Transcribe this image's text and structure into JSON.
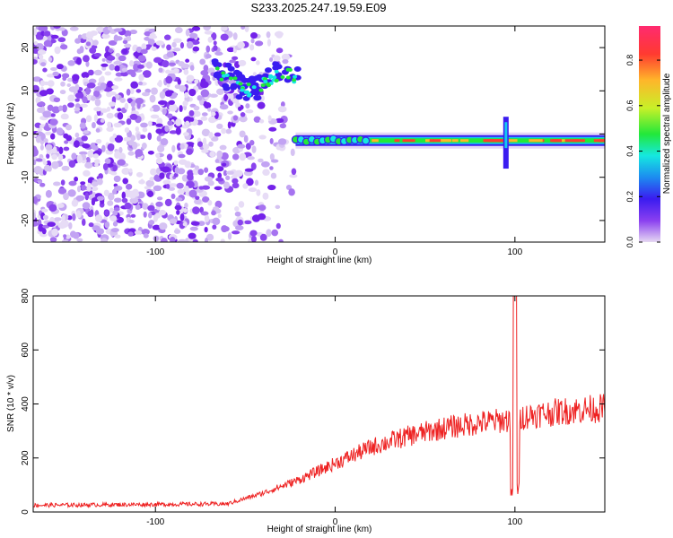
{
  "title": "S233.2025.247.19.59.E09",
  "colors": {
    "trace": "#ee2222",
    "frame": "#000000"
  },
  "chart_data": [
    {
      "type": "heatmap",
      "xlabel": "Height of straight line (km)",
      "ylabel": "Frequency (Hz)",
      "xlim": [
        -168,
        150
      ],
      "ylim": [
        -25,
        25
      ],
      "xticks": [
        -100,
        0,
        100
      ],
      "yticks": [
        -20,
        -10,
        0,
        10,
        20
      ],
      "colorbar": {
        "label": "Normalized spectral amplitude",
        "range": [
          0,
          0.95
        ],
        "ticks": [
          0.0,
          0.2,
          0.4,
          0.6,
          0.8
        ],
        "colormap": "rainbow (violet low to red/magenta high)"
      },
      "features": [
        {
          "name": "background noise",
          "x_range": [
            -168,
            -20
          ],
          "freq_range": [
            -25,
            25
          ]
        },
        {
          "name": "signal segment",
          "x_range": [
            -68,
            -20
          ],
          "freq_center_start": 12,
          "freq_center_end": 12
        },
        {
          "name": "main carrier",
          "x_range": [
            -22,
            150
          ],
          "freq_center": -1.5
        },
        {
          "name": "vertical artefact",
          "x_position": 95,
          "freq_range": [
            -8,
            4
          ]
        }
      ]
    },
    {
      "type": "line",
      "xlabel": "Height of straight line (km)",
      "ylabel": "SNR (10 * v/v)",
      "xlim": [
        -168,
        150
      ],
      "ylim": [
        0,
        800
      ],
      "xticks": [
        -100,
        0,
        100
      ],
      "yticks": [
        0,
        200,
        400,
        600,
        800
      ],
      "trend": {
        "x": [
          -168,
          -60,
          -40,
          -20,
          0,
          20,
          40,
          60,
          80,
          95,
          100,
          110,
          130,
          150
        ],
        "y": [
          25,
          30,
          70,
          120,
          180,
          240,
          280,
          310,
          330,
          340,
          800,
          360,
          375,
          385
        ]
      },
      "spike": {
        "x": 100,
        "y_max": 800,
        "y_min": 50
      }
    }
  ]
}
